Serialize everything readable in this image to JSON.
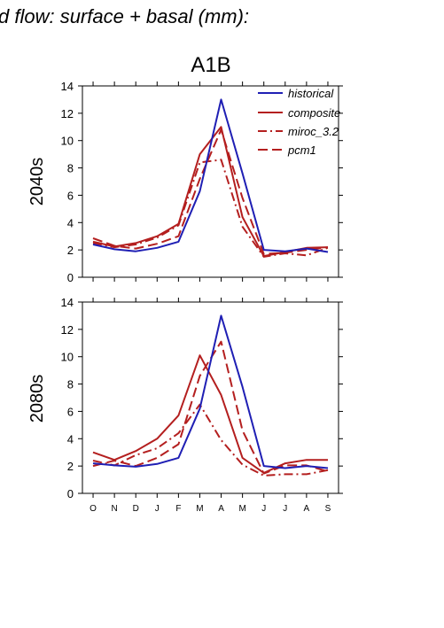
{
  "figure": {
    "title": "d flow: surface + basal (mm):",
    "scenario": "A1B",
    "row_labels": [
      "2040s",
      "2080s"
    ]
  },
  "colors": {
    "historical": "#1f1fb4",
    "composite": "#b41f1f",
    "miroc_3.2": "#b41f1f",
    "pcm1": "#b41f1f"
  },
  "chart_data": [
    {
      "type": "line",
      "panel": "2040s",
      "title": "A1B",
      "ylabel": "2040s",
      "xlabel": "",
      "categories": [
        "O",
        "N",
        "D",
        "J",
        "F",
        "M",
        "A",
        "M",
        "J",
        "J",
        "A",
        "S"
      ],
      "ylim": [
        0,
        14
      ],
      "yticks": [
        0,
        2,
        4,
        6,
        8,
        10,
        12,
        14
      ],
      "legend_position": "top-right",
      "series": [
        {
          "name": "historical",
          "style": "solid",
          "values": [
            2.4,
            2.05,
            1.9,
            2.15,
            2.6,
            6.3,
            13.0,
            7.6,
            2.0,
            1.9,
            2.1,
            1.85
          ]
        },
        {
          "name": "composite",
          "style": "solid",
          "values": [
            2.6,
            2.25,
            2.5,
            3.0,
            3.9,
            9.0,
            11.0,
            4.4,
            1.55,
            1.85,
            2.15,
            2.2
          ]
        },
        {
          "name": "miroc_3.2",
          "style": "dashdot",
          "values": [
            2.5,
            2.2,
            2.4,
            2.9,
            3.8,
            8.4,
            8.6,
            3.7,
            1.5,
            1.75,
            1.6,
            2.15
          ]
        },
        {
          "name": "pcm1",
          "style": "dash",
          "values": [
            2.85,
            2.3,
            2.1,
            2.45,
            3.0,
            7.2,
            10.8,
            5.8,
            1.7,
            1.8,
            2.0,
            2.2
          ]
        }
      ]
    },
    {
      "type": "line",
      "panel": "2080s",
      "title": "",
      "ylabel": "2080s",
      "xlabel": "",
      "categories": [
        "O",
        "N",
        "D",
        "J",
        "F",
        "M",
        "A",
        "M",
        "J",
        "J",
        "A",
        "S"
      ],
      "ylim": [
        0,
        14
      ],
      "yticks": [
        0,
        2,
        4,
        6,
        8,
        10,
        12,
        14
      ],
      "legend_position": "none",
      "series": [
        {
          "name": "historical",
          "style": "solid",
          "values": [
            2.2,
            2.05,
            1.95,
            2.15,
            2.6,
            6.2,
            13.0,
            7.8,
            2.0,
            1.85,
            2.0,
            1.85
          ]
        },
        {
          "name": "composite",
          "style": "solid",
          "values": [
            3.0,
            2.45,
            3.1,
            4.0,
            5.7,
            10.1,
            7.2,
            2.6,
            1.5,
            2.2,
            2.45,
            2.45
          ]
        },
        {
          "name": "miroc_3.2",
          "style": "dashdot",
          "values": [
            2.4,
            2.05,
            2.8,
            3.3,
            4.4,
            6.5,
            3.9,
            2.1,
            1.3,
            1.4,
            1.4,
            1.7
          ]
        },
        {
          "name": "pcm1",
          "style": "dash",
          "values": [
            2.0,
            2.4,
            2.0,
            2.6,
            3.6,
            8.6,
            11.1,
            4.6,
            1.45,
            2.05,
            2.05,
            1.6
          ]
        }
      ]
    }
  ]
}
